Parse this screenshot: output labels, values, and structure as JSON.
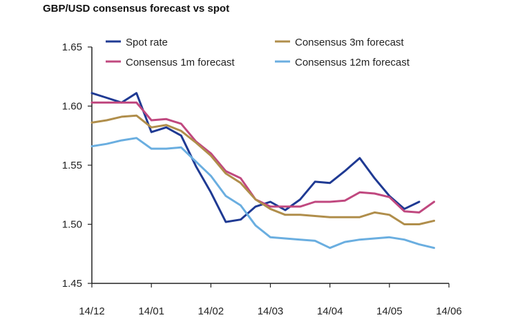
{
  "chart_data": {
    "type": "line",
    "title": "GBP/USD consensus forecast vs spot",
    "xlabel": "",
    "ylabel": "",
    "x_tick_labels": [
      "14/12",
      "14/01",
      "14/02",
      "14/03",
      "14/04",
      "14/05",
      "14/06"
    ],
    "y_tick_labels": [
      "1.45",
      "1.50",
      "1.55",
      "1.60",
      "1.65"
    ],
    "ylim": [
      1.45,
      1.65
    ],
    "xlim": [
      0,
      24
    ],
    "grid": false,
    "legend_position": "top",
    "series": [
      {
        "name": "Spot rate",
        "color": "#1f3a93",
        "points": [
          [
            0,
            1.611
          ],
          [
            1,
            1.607
          ],
          [
            2,
            1.603
          ],
          [
            3,
            1.611
          ],
          [
            4,
            1.578
          ],
          [
            5,
            1.582
          ],
          [
            6,
            1.575
          ],
          [
            7,
            1.549
          ],
          [
            8,
            1.527
          ],
          [
            9,
            1.502
          ],
          [
            10,
            1.504
          ],
          [
            11,
            1.515
          ],
          [
            12,
            1.519
          ],
          [
            13,
            1.512
          ],
          [
            14,
            1.521
          ],
          [
            15,
            1.536
          ],
          [
            16,
            1.535
          ],
          [
            17,
            1.545
          ],
          [
            18,
            1.556
          ],
          [
            19,
            1.539
          ],
          [
            20,
            1.524
          ],
          [
            21,
            1.513
          ],
          [
            22,
            1.519
          ]
        ]
      },
      {
        "name": "Consensus 1m forecast",
        "color": "#c0487f",
        "points": [
          [
            0,
            1.603
          ],
          [
            1,
            1.603
          ],
          [
            2,
            1.603
          ],
          [
            3,
            1.603
          ],
          [
            4,
            1.588
          ],
          [
            5,
            1.589
          ],
          [
            6,
            1.585
          ],
          [
            7,
            1.57
          ],
          [
            8,
            1.56
          ],
          [
            9,
            1.545
          ],
          [
            10,
            1.539
          ],
          [
            11,
            1.521
          ],
          [
            12,
            1.515
          ],
          [
            13,
            1.515
          ],
          [
            14,
            1.515
          ],
          [
            15,
            1.519
          ],
          [
            16,
            1.519
          ],
          [
            17,
            1.52
          ],
          [
            18,
            1.527
          ],
          [
            19,
            1.526
          ],
          [
            20,
            1.523
          ],
          [
            21,
            1.511
          ],
          [
            22,
            1.51
          ],
          [
            23,
            1.519
          ]
        ]
      },
      {
        "name": "Consensus 3m forecast",
        "color": "#b08e4b",
        "points": [
          [
            0,
            1.586
          ],
          [
            1,
            1.588
          ],
          [
            2,
            1.591
          ],
          [
            3,
            1.592
          ],
          [
            4,
            1.582
          ],
          [
            5,
            1.584
          ],
          [
            6,
            1.579
          ],
          [
            7,
            1.569
          ],
          [
            8,
            1.558
          ],
          [
            9,
            1.543
          ],
          [
            10,
            1.535
          ],
          [
            11,
            1.521
          ],
          [
            12,
            1.513
          ],
          [
            13,
            1.508
          ],
          [
            14,
            1.508
          ],
          [
            15,
            1.507
          ],
          [
            16,
            1.506
          ],
          [
            17,
            1.506
          ],
          [
            18,
            1.506
          ],
          [
            19,
            1.51
          ],
          [
            20,
            1.508
          ],
          [
            21,
            1.5
          ],
          [
            22,
            1.5
          ],
          [
            23,
            1.503
          ]
        ]
      },
      {
        "name": "Consensus 12m forecast",
        "color": "#6aaee0",
        "points": [
          [
            0,
            1.566
          ],
          [
            1,
            1.568
          ],
          [
            2,
            1.571
          ],
          [
            3,
            1.573
          ],
          [
            4,
            1.564
          ],
          [
            5,
            1.564
          ],
          [
            6,
            1.565
          ],
          [
            7,
            1.553
          ],
          [
            8,
            1.541
          ],
          [
            9,
            1.524
          ],
          [
            10,
            1.516
          ],
          [
            11,
            1.499
          ],
          [
            12,
            1.489
          ],
          [
            13,
            1.488
          ],
          [
            14,
            1.487
          ],
          [
            15,
            1.486
          ],
          [
            16,
            1.48
          ],
          [
            17,
            1.485
          ],
          [
            18,
            1.487
          ],
          [
            19,
            1.488
          ],
          [
            20,
            1.489
          ],
          [
            21,
            1.487
          ],
          [
            22,
            1.483
          ],
          [
            23,
            1.48
          ]
        ]
      }
    ]
  }
}
